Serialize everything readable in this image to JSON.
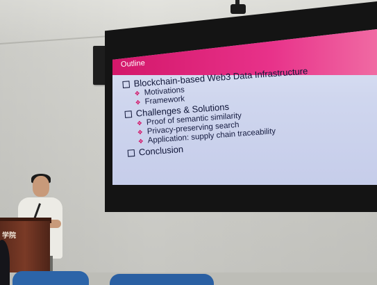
{
  "slide": {
    "title": "Outline",
    "items": [
      {
        "text": "Blockchain-based Web3 Data Infrastructure",
        "subitems": [
          "Motivations",
          "Framework"
        ]
      },
      {
        "text": "Challenges & Solutions",
        "subitems": [
          "Proof of semantic similarity",
          "Privacy-preserving search",
          "Application: supply chain traceability"
        ]
      },
      {
        "text": "Conclusion",
        "subitems": []
      }
    ]
  },
  "podium": {
    "label": "学院"
  },
  "colors": {
    "accent": "#d3176a",
    "slide_bg": "#cfd6ee",
    "title_text": "#ffffff",
    "body_text": "#0f1538"
  },
  "icons": {
    "bullet_level1": "square-outline-icon",
    "bullet_level2": "pink-diamond-cluster-icon"
  }
}
